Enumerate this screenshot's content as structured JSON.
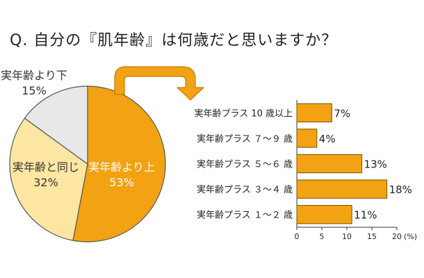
{
  "question": "Q. 自分の『肌年齢』は何歳だと思いますか？",
  "colors": {
    "orange": "#f2a212",
    "orange_dark": "#c97a00",
    "light_yellow": "#fde6a2",
    "light_gray": "#e8e8e8",
    "outline": "#555555"
  },
  "chart_data": [
    {
      "type": "pie",
      "slices": [
        {
          "label": "実年齢より上",
          "value": 53,
          "value_label": "53%",
          "color": "#f2a212"
        },
        {
          "label": "実年齢と同じ",
          "value": 32,
          "value_label": "32%",
          "color": "#fde6a2"
        },
        {
          "label": "実年齢より下",
          "value": 15,
          "value_label": "15%",
          "color": "#e8e8e8"
        }
      ]
    },
    {
      "type": "bar",
      "orientation": "horizontal",
      "categories": [
        "実年齢プラス 10 歳以上",
        "実年齢プラス ７～９ 歳",
        "実年齢プラス ５～６ 歳",
        "実年齢プラス ３～４ 歳",
        "実年齢プラス １～２ 歳"
      ],
      "values": [
        7,
        4,
        13,
        18,
        11
      ],
      "value_labels": [
        "7%",
        "4%",
        "13%",
        "18%",
        "11%"
      ],
      "xlim": [
        0,
        20
      ],
      "x_ticks": [
        "0",
        "5",
        "10",
        "15",
        "20"
      ],
      "x_unit": "(%)",
      "grid": false
    }
  ]
}
